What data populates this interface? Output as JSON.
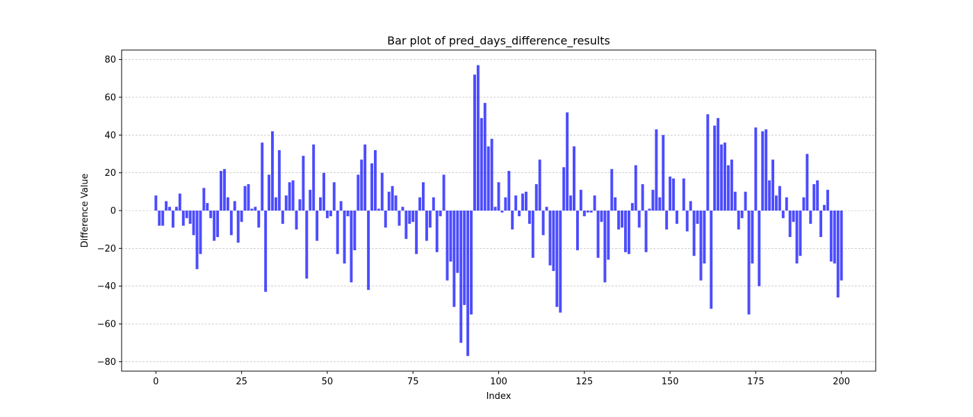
{
  "chart_data": {
    "type": "bar",
    "title": "Bar plot of pred_days_difference_results",
    "xlabel": "Index",
    "ylabel": "Difference Value",
    "xlim": [
      -10,
      210
    ],
    "ylim": [
      -85,
      85
    ],
    "xticks": [
      0,
      25,
      50,
      75,
      100,
      125,
      150,
      175,
      200
    ],
    "yticks": [
      -80,
      -60,
      -40,
      -20,
      0,
      20,
      40,
      60,
      80
    ],
    "grid": "y-dashed",
    "bar_color": "#0000ff",
    "bar_alpha": 0.7,
    "x_start": 0,
    "values": [
      8,
      -8,
      -8,
      5,
      2,
      -9,
      2,
      9,
      -8,
      -4,
      -7,
      -13,
      -31,
      -23,
      12,
      4,
      -4,
      -16,
      -14,
      21,
      22,
      7,
      -13,
      5,
      -17,
      -6,
      13,
      14,
      1,
      2,
      -9,
      36,
      -43,
      19,
      42,
      7,
      32,
      -7,
      8,
      15,
      16,
      -10,
      6,
      29,
      -36,
      11,
      35,
      -16,
      7,
      20,
      -4,
      -3,
      15,
      -23,
      5,
      -28,
      -3,
      -38,
      -21,
      19,
      27,
      35,
      -42,
      25,
      32,
      1,
      20,
      -9,
      10,
      13,
      8,
      -8,
      2,
      -15,
      -7,
      -6,
      -23,
      7,
      15,
      -16,
      -9,
      7,
      -22,
      -3,
      19,
      -37,
      -27,
      -51,
      -33,
      -70,
      -50,
      -77,
      -55,
      72,
      77,
      49,
      57,
      34,
      38,
      2,
      15,
      -1,
      7,
      21,
      -10,
      8,
      -3,
      9,
      10,
      -7,
      -25,
      14,
      27,
      -13,
      2,
      -29,
      -32,
      -51,
      -54,
      23,
      52,
      8,
      34,
      -21,
      11,
      -3,
      -1,
      -1,
      8,
      -25,
      -6,
      -38,
      -26,
      22,
      7,
      -10,
      -9,
      -22,
      -23,
      4,
      24,
      -9,
      14,
      -22,
      1,
      11,
      43,
      7,
      40,
      -10,
      18,
      17,
      -7,
      0,
      17,
      -11,
      5,
      -24,
      -7,
      -37,
      -28,
      51,
      -52,
      45,
      49,
      35,
      36,
      24,
      27,
      10,
      -10,
      -4,
      10,
      -55,
      -28,
      44,
      -40,
      42,
      43,
      16,
      27,
      8,
      13,
      -4,
      7,
      -14,
      -6,
      -28,
      -24,
      7,
      30,
      -7,
      14,
      16,
      -14,
      3,
      11,
      -27,
      -28,
      -46,
      -37
    ]
  }
}
